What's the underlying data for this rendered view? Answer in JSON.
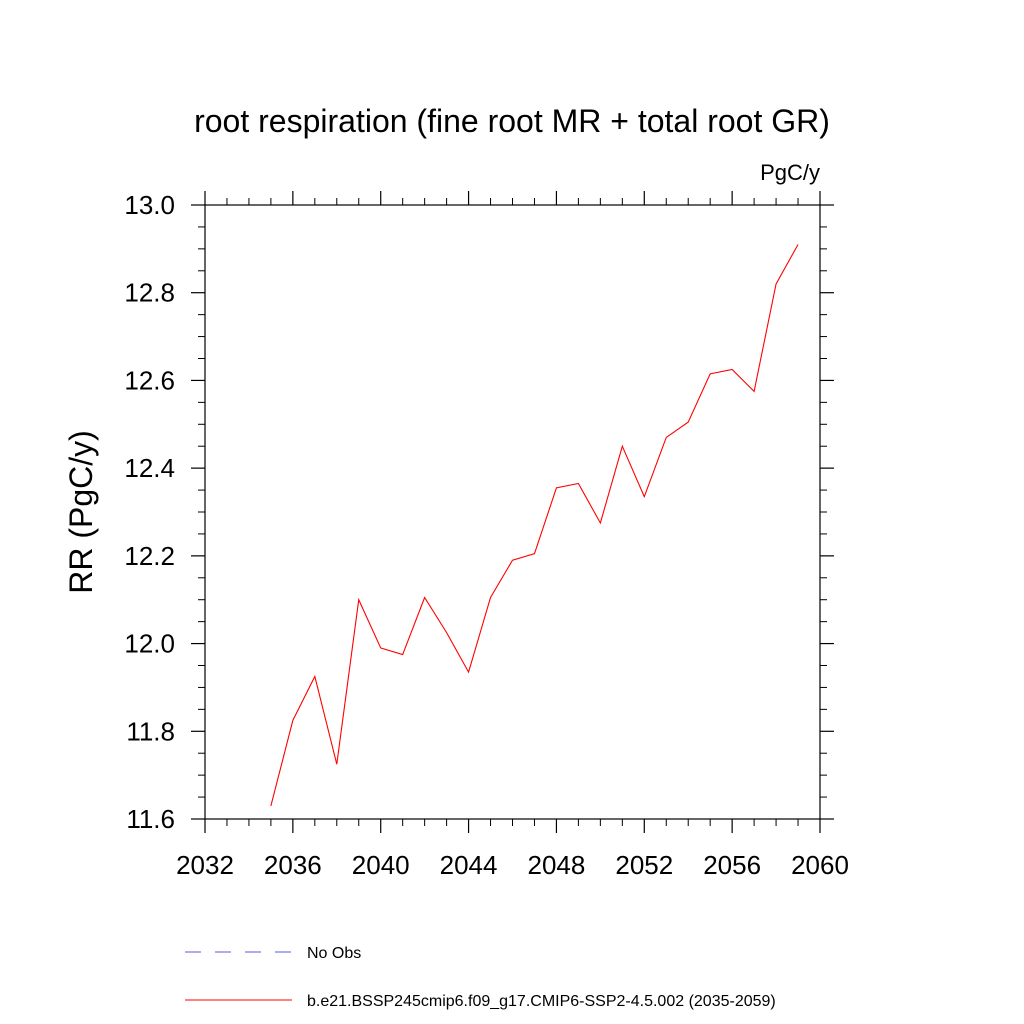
{
  "chart_data": {
    "type": "line",
    "title": "root respiration (fine root MR + total root GR)",
    "units_label": "PgC/y",
    "ylabel": "RR  (PgC/y)",
    "xlabel": "",
    "xlim": [
      2032,
      2060
    ],
    "ylim": [
      11.6,
      13.0
    ],
    "x_ticks": [
      2032,
      2036,
      2040,
      2044,
      2048,
      2052,
      2056,
      2060
    ],
    "y_ticks": [
      11.6,
      11.8,
      12.0,
      12.2,
      12.4,
      12.6,
      12.8,
      13.0
    ],
    "x_tick_labels": [
      "2032",
      "2036",
      "2040",
      "2044",
      "2048",
      "2052",
      "2056",
      "2060"
    ],
    "y_tick_labels": [
      "11.6",
      "11.8",
      "12.0",
      "12.2",
      "12.4",
      "12.6",
      "12.8",
      "13.0"
    ],
    "grid": false,
    "legend_position": "bottom",
    "series": [
      {
        "name": "b.e21.BSSP245cmip6.f09_g17.CMIP6-SSP2-4.5.002 (2035-2059)",
        "color": "#ff0000",
        "style": "solid",
        "x": [
          2035,
          2036,
          2037,
          2038,
          2039,
          2040,
          2041,
          2042,
          2043,
          2044,
          2045,
          2046,
          2047,
          2048,
          2049,
          2050,
          2051,
          2052,
          2053,
          2054,
          2055,
          2056,
          2057,
          2058,
          2059
        ],
        "y": [
          11.63,
          11.825,
          11.925,
          11.725,
          12.1,
          11.99,
          11.975,
          12.105,
          12.025,
          11.935,
          12.105,
          12.19,
          12.205,
          12.355,
          12.365,
          12.275,
          12.45,
          12.335,
          12.47,
          12.505,
          12.615,
          12.625,
          12.575,
          12.82,
          12.91
        ]
      }
    ],
    "legend_entries": [
      {
        "label": "No Obs",
        "color": "#5a5adc",
        "style": "dashed"
      },
      {
        "label": "b.e21.BSSP245cmip6.f09_g17.CMIP6-SSP2-4.5.002 (2035-2059)",
        "color": "#ff0000",
        "style": "solid"
      }
    ]
  }
}
